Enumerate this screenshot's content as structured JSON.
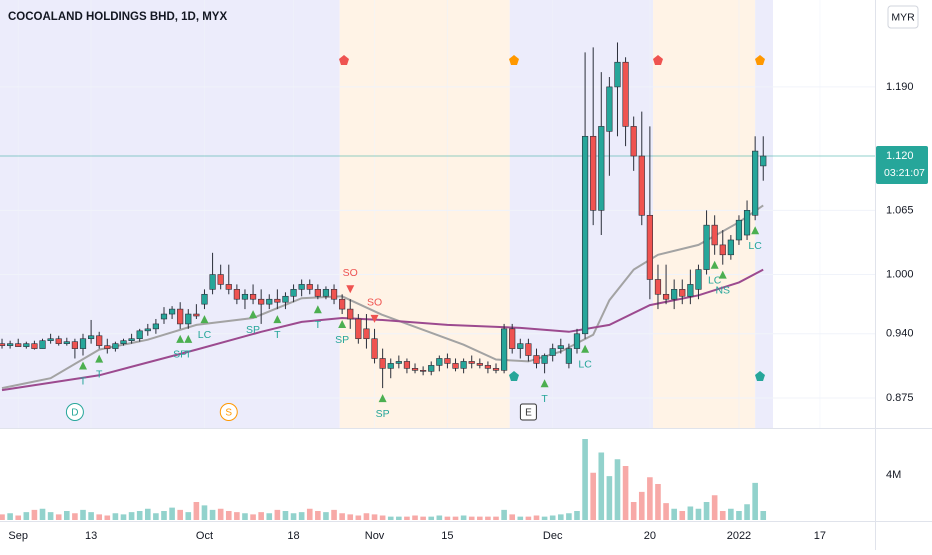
{
  "chart_data": {
    "type": "candlestick",
    "title": "COCOALAND HOLDINGS BHD, 1D, MYX",
    "currency": "MYR",
    "x": [
      0,
      1,
      2,
      3,
      4,
      5,
      6,
      7,
      8,
      9,
      10,
      11,
      12,
      13,
      14,
      15,
      16,
      17,
      18,
      19,
      20,
      21,
      22,
      23,
      24,
      25,
      26,
      27,
      28,
      29,
      30,
      31,
      32,
      33,
      34,
      35,
      36,
      37,
      38,
      39,
      40,
      41,
      42,
      43,
      44,
      45,
      46,
      47,
      48,
      49,
      50,
      51,
      52,
      53,
      54,
      55,
      56,
      57,
      58,
      59,
      60,
      61,
      62,
      63,
      64,
      65,
      66,
      67,
      68,
      69,
      70,
      71,
      72,
      73,
      74,
      75,
      76,
      77,
      78,
      79,
      80,
      81,
      82,
      83,
      84,
      85,
      86,
      87,
      88,
      89,
      90,
      91,
      92,
      93,
      94
    ],
    "open": [
      0.93,
      0.928,
      0.93,
      0.927,
      0.93,
      0.925,
      0.933,
      0.935,
      0.93,
      0.932,
      0.925,
      0.935,
      0.938,
      0.928,
      0.925,
      0.93,
      0.933,
      0.935,
      0.943,
      0.945,
      0.955,
      0.96,
      0.965,
      0.95,
      0.96,
      0.97,
      0.985,
      1.0,
      0.99,
      0.985,
      0.975,
      0.98,
      0.975,
      0.97,
      0.975,
      0.972,
      0.978,
      0.985,
      0.99,
      0.985,
      0.978,
      0.985,
      0.975,
      0.965,
      0.955,
      0.945,
      0.935,
      0.915,
      0.905,
      0.91,
      0.912,
      0.905,
      0.903,
      0.902,
      0.908,
      0.915,
      0.91,
      0.905,
      0.912,
      0.91,
      0.908,
      0.905,
      0.903,
      0.945,
      0.925,
      0.93,
      0.918,
      0.91,
      0.918,
      0.925,
      0.91,
      0.925,
      0.94,
      1.14,
      1.065,
      1.145,
      1.19,
      1.215,
      1.15,
      1.12,
      1.06,
      0.995,
      0.98,
      0.975,
      0.985,
      0.978,
      0.985,
      1.005,
      1.05,
      1.03,
      1.02,
      1.035,
      1.04,
      1.06,
      1.11
    ],
    "high": [
      0.935,
      0.933,
      0.935,
      0.932,
      0.933,
      0.935,
      0.94,
      0.938,
      0.936,
      0.935,
      0.94,
      0.954,
      0.942,
      0.935,
      0.932,
      0.935,
      0.94,
      0.945,
      0.95,
      0.955,
      0.967,
      0.968,
      0.972,
      0.965,
      0.97,
      0.985,
      1.022,
      1.01,
      1.01,
      0.99,
      0.985,
      0.99,
      0.985,
      0.98,
      0.985,
      0.982,
      0.99,
      0.995,
      0.995,
      0.99,
      0.988,
      0.99,
      0.98,
      0.975,
      0.96,
      0.96,
      0.945,
      0.925,
      0.915,
      0.918,
      0.915,
      0.91,
      0.907,
      0.912,
      0.918,
      0.92,
      0.915,
      0.915,
      0.918,
      0.915,
      0.912,
      0.91,
      0.95,
      0.95,
      0.935,
      0.935,
      0.925,
      0.92,
      0.93,
      0.935,
      0.93,
      0.945,
      1.225,
      1.23,
      1.205,
      1.2,
      1.235,
      1.22,
      1.16,
      1.165,
      1.15,
      1.01,
      1.01,
      0.995,
      0.995,
      1.005,
      1.01,
      1.065,
      1.06,
      1.045,
      1.04,
      1.06,
      1.075,
      1.14,
      1.14
    ],
    "low": [
      0.925,
      0.925,
      0.927,
      0.925,
      0.924,
      0.925,
      0.93,
      0.928,
      0.928,
      0.915,
      0.918,
      0.93,
      0.925,
      0.92,
      0.922,
      0.928,
      0.93,
      0.932,
      0.938,
      0.94,
      0.95,
      0.955,
      0.945,
      0.945,
      0.955,
      0.965,
      0.98,
      0.985,
      0.98,
      0.97,
      0.965,
      0.97,
      0.95,
      0.965,
      0.965,
      0.965,
      0.972,
      0.978,
      0.98,
      0.975,
      0.975,
      0.97,
      0.96,
      0.945,
      0.93,
      0.925,
      0.91,
      0.885,
      0.895,
      0.905,
      0.9,
      0.9,
      0.898,
      0.898,
      0.902,
      0.905,
      0.902,
      0.9,
      0.905,
      0.905,
      0.9,
      0.9,
      0.9,
      0.92,
      0.915,
      0.912,
      0.905,
      0.9,
      0.912,
      0.92,
      0.905,
      0.92,
      0.935,
      1.05,
      1.04,
      1.1,
      1.14,
      1.13,
      1.105,
      1.05,
      0.975,
      0.965,
      0.97,
      0.965,
      0.97,
      0.97,
      0.975,
      1.0,
      1.02,
      1.01,
      1.015,
      1.03,
      1.035,
      1.055,
      1.095
    ],
    "close": [
      0.928,
      0.93,
      0.927,
      0.93,
      0.925,
      0.933,
      0.935,
      0.93,
      0.932,
      0.925,
      0.935,
      0.938,
      0.928,
      0.925,
      0.93,
      0.933,
      0.935,
      0.943,
      0.945,
      0.95,
      0.96,
      0.965,
      0.95,
      0.96,
      0.958,
      0.98,
      1.0,
      0.99,
      0.985,
      0.975,
      0.98,
      0.975,
      0.97,
      0.975,
      0.972,
      0.978,
      0.985,
      0.99,
      0.985,
      0.978,
      0.985,
      0.975,
      0.965,
      0.955,
      0.935,
      0.935,
      0.915,
      0.905,
      0.91,
      0.912,
      0.905,
      0.903,
      0.902,
      0.908,
      0.915,
      0.91,
      0.905,
      0.912,
      0.91,
      0.908,
      0.905,
      0.903,
      0.945,
      0.925,
      0.93,
      0.918,
      0.91,
      0.918,
      0.925,
      0.928,
      0.925,
      0.94,
      1.14,
      1.065,
      1.15,
      1.19,
      1.215,
      1.15,
      1.12,
      1.06,
      0.995,
      0.98,
      0.975,
      0.985,
      0.978,
      0.99,
      1.005,
      1.05,
      1.03,
      1.02,
      1.035,
      1.055,
      1.065,
      1.125,
      1.12
    ],
    "volume": [
      500000,
      600000,
      400000,
      700000,
      900000,
      1000000,
      700000,
      500000,
      800000,
      600000,
      900000,
      700000,
      500000,
      400000,
      600000,
      500000,
      700000,
      800000,
      1000000,
      600000,
      800000,
      1100000,
      900000,
      700000,
      1600000,
      1300000,
      900000,
      1000000,
      800000,
      700000,
      600000,
      500000,
      700000,
      600000,
      900000,
      800000,
      600000,
      700000,
      1000000,
      800000,
      700000,
      900000,
      600000,
      500000,
      400000,
      600000,
      500000,
      400000,
      300000,
      300000,
      300000,
      400000,
      300000,
      300000,
      400000,
      300000,
      300000,
      400000,
      300000,
      300000,
      300000,
      300000,
      900000,
      500000,
      300000,
      300000,
      400000,
      300000,
      400000,
      500000,
      600000,
      800000,
      7200000,
      4200000,
      6000000,
      3900000,
      5400000,
      4800000,
      1600000,
      2500000,
      3800000,
      3200000,
      1500000,
      1000000,
      800000,
      1200000,
      1000000,
      1600000,
      2200000,
      800000,
      1000000,
      800000,
      1400000,
      3300000,
      800000
    ],
    "up_color": "#26a69a",
    "down_color": "#ef5350",
    "moving_averages": [
      {
        "color": "#a3a3a3",
        "x": [
          0,
          6,
          12,
          18,
          24,
          31,
          37,
          42,
          47,
          52,
          57,
          61,
          65,
          69,
          73,
          75,
          78,
          81,
          86,
          91,
          94
        ],
        "values": [
          0.885,
          0.895,
          0.924,
          0.934,
          0.949,
          0.956,
          0.976,
          0.978,
          0.959,
          0.944,
          0.929,
          0.914,
          0.912,
          0.922,
          0.939,
          0.974,
          1.005,
          1.02,
          1.03,
          1.053,
          1.07
        ]
      },
      {
        "color": "#9c4a8f",
        "x": [
          0,
          12,
          24,
          32,
          37,
          42,
          47,
          55,
          64,
          70,
          75,
          80,
          86,
          91,
          94
        ],
        "values": [
          0.883,
          0.898,
          0.924,
          0.942,
          0.952,
          0.956,
          0.954,
          0.949,
          0.946,
          0.942,
          0.949,
          0.969,
          0.979,
          0.992,
          1.005
        ]
      }
    ],
    "backgrounds": [
      {
        "from": -0.25,
        "to": 41.7,
        "color": "#ececfb"
      },
      {
        "from": 41.7,
        "to": 62.7,
        "color": "#fff3e6"
      },
      {
        "from": 62.7,
        "to": 80.4,
        "color": "#ececfb"
      },
      {
        "from": 80.4,
        "to": 93,
        "color": "#fff3e6"
      },
      {
        "from": 93,
        "to": 95.2,
        "color": "#ececfb"
      }
    ],
    "signals": [
      {
        "label": "T",
        "x": 10,
        "side": "buy"
      },
      {
        "label": "T",
        "x": 12,
        "side": "buy"
      },
      {
        "label": "SP",
        "x": 22,
        "side": "buy"
      },
      {
        "label": "T",
        "x": 23,
        "side": "buy"
      },
      {
        "label": "LC",
        "x": 25,
        "side": "buy"
      },
      {
        "label": "SP",
        "x": 31,
        "side": "buy"
      },
      {
        "label": "T",
        "x": 34,
        "side": "buy"
      },
      {
        "label": "T",
        "x": 39,
        "side": "buy"
      },
      {
        "label": "SP",
        "x": 42,
        "side": "buy"
      },
      {
        "label": "SO",
        "x": 43,
        "side": "sell"
      },
      {
        "label": "SO",
        "x": 46,
        "side": "sell"
      },
      {
        "label": "SP",
        "x": 47,
        "side": "buy"
      },
      {
        "label": "T",
        "x": 67,
        "side": "buy"
      },
      {
        "label": "LC",
        "x": 72,
        "side": "buy"
      },
      {
        "label": "LC",
        "x": 88,
        "side": "buy"
      },
      {
        "label": "NS",
        "x": 89,
        "side": "buy"
      },
      {
        "label": "LC",
        "x": 93,
        "side": "buy"
      }
    ],
    "events": [
      {
        "label": "D",
        "x": 9,
        "color": "#26a69a"
      },
      {
        "label": "S",
        "x": 28,
        "color": "#ff9800"
      },
      {
        "label": "E",
        "x": 65,
        "color": "#333333"
      }
    ],
    "xlim": [
      -0.25,
      107.8
    ],
    "xticks": [
      {
        "value": 2,
        "label": "Sep"
      },
      {
        "value": 11,
        "label": "13"
      },
      {
        "value": 25,
        "label": "Oct"
      },
      {
        "value": 36,
        "label": "18"
      },
      {
        "value": 46,
        "label": "Nov"
      },
      {
        "value": 55,
        "label": "15"
      },
      {
        "value": 68,
        "label": "Dec"
      },
      {
        "value": 80,
        "label": "20"
      },
      {
        "value": 91,
        "label": "2022"
      },
      {
        "value": 101,
        "label": "17"
      }
    ],
    "ylim": [
      0.8446,
      1.278
    ],
    "yticks": [
      0.875,
      {
        "value": 0.94,
        "label": "0.940"
      },
      {
        "value": 1.0,
        "label": "1.000"
      },
      1.065,
      {
        "value": 1.19,
        "label": "1.190"
      }
    ],
    "last_price": {
      "value": 1.12,
      "label": "1.120"
    },
    "countdown": "03:21:07",
    "volume_ylim": [
      0,
      8000000
    ],
    "volume_yticks": [
      {
        "value": 4000000,
        "label": "4M"
      }
    ]
  }
}
